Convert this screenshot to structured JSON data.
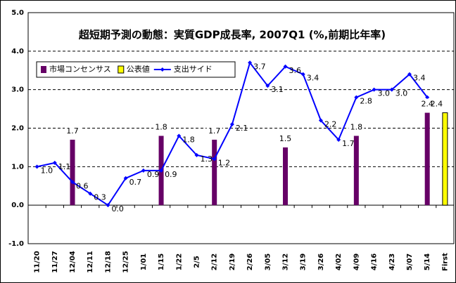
{
  "chart_data": {
    "type": "bar_line",
    "title": "超短期予測の動態：実質GDP成長率, 2007Q1 (%,前期比年率)",
    "categories": [
      "11/20",
      "11/27",
      "12/04",
      "12/11",
      "12/18",
      "12/25",
      "1/01",
      "1/15",
      "1/22",
      "2/5",
      "2/12",
      "2/19",
      "2/26",
      "3/05",
      "3/12",
      "3/19",
      "3/26",
      "4/02",
      "4/09",
      "4/16",
      "4/23",
      "5/07",
      "5/14",
      "First"
    ],
    "series": [
      {
        "name": "市場コンセンサス",
        "type": "bar",
        "color": "#660066",
        "values": [
          null,
          null,
          1.7,
          null,
          null,
          null,
          null,
          1.8,
          null,
          null,
          1.7,
          null,
          null,
          null,
          1.5,
          null,
          null,
          null,
          1.8,
          null,
          null,
          null,
          2.4,
          null
        ],
        "value_labels": [
          null,
          null,
          "1.7",
          null,
          null,
          null,
          null,
          "1.8",
          null,
          null,
          "1.7",
          null,
          null,
          null,
          "1.5",
          null,
          null,
          null,
          "1.8",
          null,
          null,
          null,
          "2.4",
          null
        ]
      },
      {
        "name": "公表値",
        "type": "bar",
        "color": "#ffff00",
        "values": [
          null,
          null,
          null,
          null,
          null,
          null,
          null,
          null,
          null,
          null,
          null,
          null,
          null,
          null,
          null,
          null,
          null,
          null,
          null,
          null,
          null,
          null,
          null,
          2.4
        ],
        "value_labels": [
          null,
          null,
          null,
          null,
          null,
          null,
          null,
          null,
          null,
          null,
          null,
          null,
          null,
          null,
          null,
          null,
          null,
          null,
          null,
          null,
          null,
          null,
          null,
          "2.4"
        ]
      },
      {
        "name": "支出サイド",
        "type": "line",
        "color": "#0000ff",
        "values": [
          1.0,
          1.1,
          0.6,
          0.3,
          0.0,
          0.7,
          0.9,
          0.9,
          1.8,
          1.3,
          1.2,
          2.1,
          3.7,
          3.1,
          3.6,
          3.4,
          2.2,
          1.7,
          2.8,
          3.0,
          3.0,
          3.4,
          2.8,
          null
        ],
        "value_labels": [
          "1.0",
          "1.1",
          "0.6",
          "0.3",
          "0.0",
          "0.7",
          "0.9",
          "0.9",
          "1.8",
          "1.3",
          "1.2",
          "2.1",
          "3.7",
          "3.1",
          "3.6",
          "3.4",
          "2.2",
          "1.7",
          "2.8",
          "3.0",
          "3.0",
          "3.4",
          null,
          null
        ]
      }
    ],
    "ylim": [
      -1,
      5
    ],
    "yticks": [
      {
        "value": -1,
        "label": "-1.0"
      },
      {
        "value": 0,
        "label": "0.0"
      },
      {
        "value": 1,
        "label": "1.0"
      },
      {
        "value": 2,
        "label": "2.0"
      },
      {
        "value": 3,
        "label": "3.0"
      },
      {
        "value": 4,
        "label": "4.0"
      },
      {
        "value": 5,
        "label": "5.0"
      }
    ],
    "grid": true,
    "legend": "upper left"
  }
}
